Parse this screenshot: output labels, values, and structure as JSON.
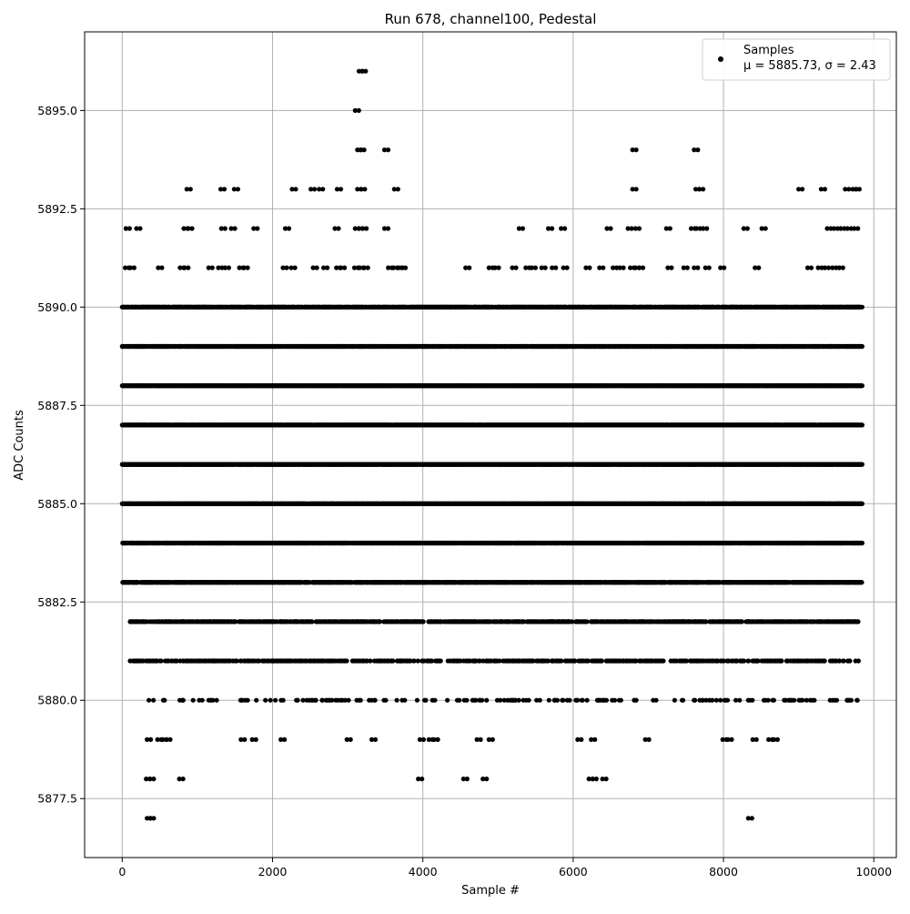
{
  "chart_data": {
    "type": "scatter",
    "title": "Run 678, channel100, Pedestal",
    "xlabel": "Sample #",
    "ylabel": "ADC Counts",
    "xlim": [
      -500,
      10300
    ],
    "ylim": [
      5876.0,
      5897.0
    ],
    "x_ticks": [
      0,
      2000,
      4000,
      6000,
      8000,
      10000
    ],
    "x_tick_labels": [
      "0",
      "2000",
      "4000",
      "6000",
      "8000",
      "10000"
    ],
    "y_ticks": [
      5877.5,
      5880.0,
      5882.5,
      5885.0,
      5887.5,
      5890.0,
      5892.5,
      5895.0
    ],
    "y_tick_labels": [
      "5877.5",
      "5880.0",
      "5882.5",
      "5885.0",
      "5887.5",
      "5890.0",
      "5892.5",
      "5895.0"
    ],
    "grid": true,
    "marker_color": "#000000",
    "legend": {
      "placement": "top-right",
      "entries": [
        {
          "label": "Samples",
          "stat_line": "μ = 5885.73, σ = 2.43"
        }
      ]
    },
    "series": [
      {
        "name": "Samples",
        "points": [
          {
            "x": 50,
            "y": 5892
          },
          {
            "x": 190,
            "y": 5892
          },
          {
            "x": 860,
            "y": 5893
          },
          {
            "x": 1310,
            "y": 5893
          },
          {
            "x": 1490,
            "y": 5893
          },
          {
            "x": 2260,
            "y": 5893
          },
          {
            "x": 2510,
            "y": 5893
          },
          {
            "x": 2620,
            "y": 5893
          },
          {
            "x": 2860,
            "y": 5893
          },
          {
            "x": 3130,
            "y": 5893
          },
          {
            "x": 3180,
            "y": 5893
          },
          {
            "x": 3620,
            "y": 5893
          },
          {
            "x": 6790,
            "y": 5893
          },
          {
            "x": 7630,
            "y": 5893
          },
          {
            "x": 7680,
            "y": 5893
          },
          {
            "x": 9000,
            "y": 5893
          },
          {
            "x": 9300,
            "y": 5893
          },
          {
            "x": 9620,
            "y": 5893
          },
          {
            "x": 9720,
            "y": 5893
          },
          {
            "x": 9760,
            "y": 5893
          },
          {
            "x": 3100,
            "y": 5895
          },
          {
            "x": 3150,
            "y": 5896
          },
          {
            "x": 3190,
            "y": 5896
          },
          {
            "x": 3130,
            "y": 5894
          },
          {
            "x": 3170,
            "y": 5894
          },
          {
            "x": 3490,
            "y": 5894
          },
          {
            "x": 6790,
            "y": 5894
          },
          {
            "x": 7610,
            "y": 5894
          },
          {
            "x": 820,
            "y": 5892
          },
          {
            "x": 880,
            "y": 5892
          },
          {
            "x": 1320,
            "y": 5892
          },
          {
            "x": 1450,
            "y": 5892
          },
          {
            "x": 1750,
            "y": 5892
          },
          {
            "x": 2170,
            "y": 5892
          },
          {
            "x": 2830,
            "y": 5892
          },
          {
            "x": 3100,
            "y": 5892
          },
          {
            "x": 3150,
            "y": 5892
          },
          {
            "x": 3200,
            "y": 5892
          },
          {
            "x": 3490,
            "y": 5892
          },
          {
            "x": 5280,
            "y": 5892
          },
          {
            "x": 5670,
            "y": 5892
          },
          {
            "x": 5840,
            "y": 5892
          },
          {
            "x": 6450,
            "y": 5892
          },
          {
            "x": 6730,
            "y": 5892
          },
          {
            "x": 6830,
            "y": 5892
          },
          {
            "x": 7240,
            "y": 5892
          },
          {
            "x": 7570,
            "y": 5892
          },
          {
            "x": 7640,
            "y": 5892
          },
          {
            "x": 7730,
            "y": 5892
          },
          {
            "x": 8270,
            "y": 5892
          },
          {
            "x": 8510,
            "y": 5892
          },
          {
            "x": 9380,
            "y": 5892
          },
          {
            "x": 9470,
            "y": 5892
          },
          {
            "x": 9560,
            "y": 5892
          },
          {
            "x": 9650,
            "y": 5892
          },
          {
            "x": 9740,
            "y": 5892
          },
          {
            "x": 40,
            "y": 5891
          },
          {
            "x": 110,
            "y": 5891
          },
          {
            "x": 480,
            "y": 5891
          },
          {
            "x": 770,
            "y": 5891
          },
          {
            "x": 830,
            "y": 5891
          },
          {
            "x": 1150,
            "y": 5891
          },
          {
            "x": 1280,
            "y": 5891
          },
          {
            "x": 1370,
            "y": 5891
          },
          {
            "x": 1560,
            "y": 5891
          },
          {
            "x": 1620,
            "y": 5891
          },
          {
            "x": 2140,
            "y": 5891
          },
          {
            "x": 2250,
            "y": 5891
          },
          {
            "x": 2540,
            "y": 5891
          },
          {
            "x": 2680,
            "y": 5891
          },
          {
            "x": 2850,
            "y": 5891
          },
          {
            "x": 2910,
            "y": 5891
          },
          {
            "x": 3090,
            "y": 5891
          },
          {
            "x": 3160,
            "y": 5891
          },
          {
            "x": 3220,
            "y": 5891
          },
          {
            "x": 3540,
            "y": 5891
          },
          {
            "x": 3610,
            "y": 5891
          },
          {
            "x": 3680,
            "y": 5891
          },
          {
            "x": 3720,
            "y": 5891
          },
          {
            "x": 4570,
            "y": 5891
          },
          {
            "x": 4880,
            "y": 5891
          },
          {
            "x": 4960,
            "y": 5891
          },
          {
            "x": 5190,
            "y": 5891
          },
          {
            "x": 5370,
            "y": 5891
          },
          {
            "x": 5450,
            "y": 5891
          },
          {
            "x": 5580,
            "y": 5891
          },
          {
            "x": 5720,
            "y": 5891
          },
          {
            "x": 5870,
            "y": 5891
          },
          {
            "x": 6170,
            "y": 5891
          },
          {
            "x": 6350,
            "y": 5891
          },
          {
            "x": 6530,
            "y": 5891
          },
          {
            "x": 6620,
            "y": 5891
          },
          {
            "x": 6760,
            "y": 5891
          },
          {
            "x": 6830,
            "y": 5891
          },
          {
            "x": 6880,
            "y": 5891
          },
          {
            "x": 7260,
            "y": 5891
          },
          {
            "x": 7470,
            "y": 5891
          },
          {
            "x": 7610,
            "y": 5891
          },
          {
            "x": 7760,
            "y": 5891
          },
          {
            "x": 7960,
            "y": 5891
          },
          {
            "x": 8420,
            "y": 5891
          },
          {
            "x": 9120,
            "y": 5891
          },
          {
            "x": 9260,
            "y": 5891
          },
          {
            "x": 9350,
            "y": 5891
          },
          {
            "x": 9450,
            "y": 5891
          },
          {
            "x": 9540,
            "y": 5891
          },
          {
            "x": 330,
            "y": 5879
          },
          {
            "x": 470,
            "y": 5879
          },
          {
            "x": 540,
            "y": 5879
          },
          {
            "x": 590,
            "y": 5879
          },
          {
            "x": 1580,
            "y": 5879
          },
          {
            "x": 1730,
            "y": 5879
          },
          {
            "x": 2110,
            "y": 5879
          },
          {
            "x": 2990,
            "y": 5879
          },
          {
            "x": 3320,
            "y": 5879
          },
          {
            "x": 3960,
            "y": 5879
          },
          {
            "x": 4080,
            "y": 5879
          },
          {
            "x": 4150,
            "y": 5879
          },
          {
            "x": 4720,
            "y": 5879
          },
          {
            "x": 4880,
            "y": 5879
          },
          {
            "x": 6060,
            "y": 5879
          },
          {
            "x": 6240,
            "y": 5879
          },
          {
            "x": 6960,
            "y": 5879
          },
          {
            "x": 7990,
            "y": 5879
          },
          {
            "x": 8060,
            "y": 5879
          },
          {
            "x": 8390,
            "y": 5879
          },
          {
            "x": 8600,
            "y": 5879
          },
          {
            "x": 8670,
            "y": 5879
          },
          {
            "x": 320,
            "y": 5878
          },
          {
            "x": 370,
            "y": 5878
          },
          {
            "x": 760,
            "y": 5878
          },
          {
            "x": 3940,
            "y": 5878
          },
          {
            "x": 4540,
            "y": 5878
          },
          {
            "x": 4800,
            "y": 5878
          },
          {
            "x": 6210,
            "y": 5878
          },
          {
            "x": 6260,
            "y": 5878
          },
          {
            "x": 6390,
            "y": 5878
          },
          {
            "x": 330,
            "y": 5877
          },
          {
            "x": 370,
            "y": 5877
          },
          {
            "x": 8330,
            "y": 5877
          }
        ],
        "dense_bands": [
          {
            "y": 5890.0,
            "x_range": [
              0,
              9850
            ],
            "fill": 0.75
          },
          {
            "y": 5889.0,
            "x_range": [
              0,
              9850
            ],
            "fill": 0.85
          },
          {
            "y": 5888.0,
            "x_range": [
              0,
              9850
            ],
            "fill": 0.95
          },
          {
            "y": 5887.0,
            "x_range": [
              0,
              9850
            ],
            "fill": 0.95
          },
          {
            "y": 5886.0,
            "x_range": [
              0,
              9850
            ],
            "fill": 0.9
          },
          {
            "y": 5885.0,
            "x_range": [
              0,
              9850
            ],
            "fill": 0.9
          },
          {
            "y": 5884.0,
            "x_range": [
              0,
              9850
            ],
            "fill": 0.85
          },
          {
            "y": 5883.0,
            "x_range": [
              0,
              9850
            ],
            "fill": 0.8
          },
          {
            "y": 5882.0,
            "x_range": [
              100,
              9800
            ],
            "fill": 0.45
          },
          {
            "y": 5881.0,
            "x_range": [
              100,
              9800
            ],
            "fill": 0.3
          },
          {
            "y": 5880.0,
            "x_range": [
              250,
              9800
            ],
            "fill": 0.1
          }
        ]
      }
    ]
  }
}
